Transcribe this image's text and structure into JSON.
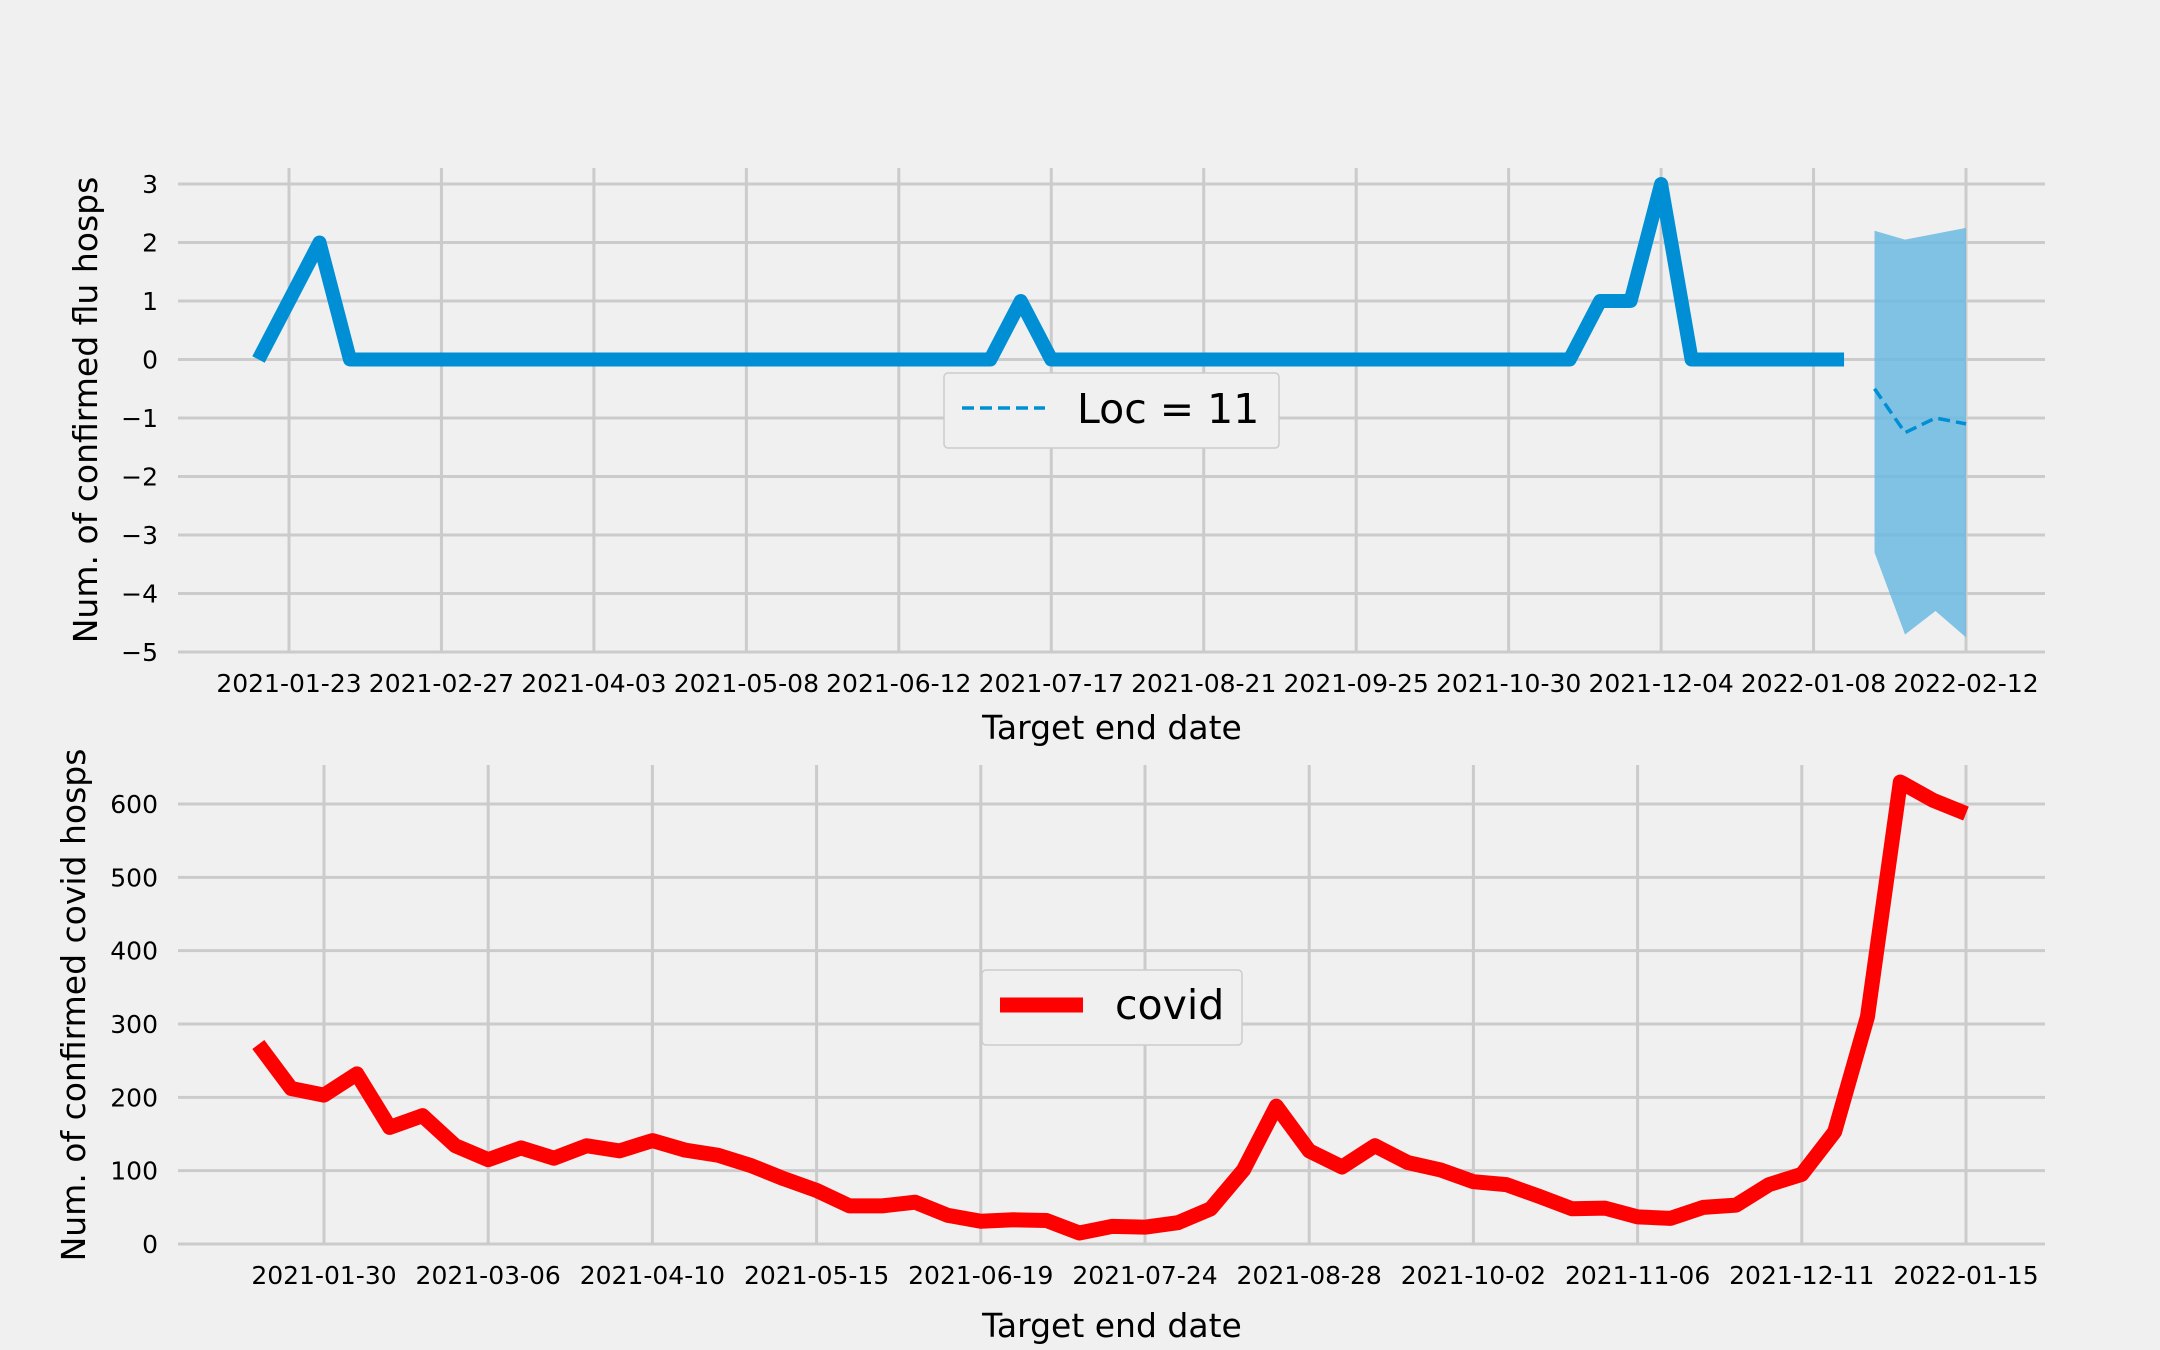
{
  "chart_data": [
    {
      "type": "line",
      "title": "",
      "xlabel": "Target end date",
      "ylabel": "Num. of confirmed flu hosps",
      "ylim": [
        -5,
        3
      ],
      "yticks": [
        3,
        2,
        1,
        0,
        -1,
        -2,
        -3,
        -4,
        -5
      ],
      "ytick_labels": [
        "3",
        "2",
        "1",
        "0",
        "−1",
        "−2",
        "−3",
        "−4",
        "−5"
      ],
      "xticks": [
        "2021-01-23",
        "2021-02-27",
        "2021-04-03",
        "2021-05-08",
        "2021-06-12",
        "2021-07-17",
        "2021-08-21",
        "2021-09-25",
        "2021-10-30",
        "2021-12-04",
        "2022-01-08",
        "2022-02-12"
      ],
      "grid": true,
      "legend": {
        "entries": [
          "Loc = 11"
        ],
        "position": "center"
      },
      "series": [
        {
          "name": "",
          "style": "solid",
          "color": "#008fd5",
          "x": [
            "2021-01-16",
            "2021-01-23",
            "2021-01-30",
            "2021-02-06",
            "2021-02-13",
            "2021-02-20",
            "2021-02-27",
            "2021-03-06",
            "2021-03-13",
            "2021-03-20",
            "2021-03-27",
            "2021-04-03",
            "2021-04-10",
            "2021-04-17",
            "2021-04-24",
            "2021-05-01",
            "2021-05-08",
            "2021-05-15",
            "2021-05-22",
            "2021-05-29",
            "2021-06-05",
            "2021-06-12",
            "2021-06-19",
            "2021-06-26",
            "2021-07-03",
            "2021-07-10",
            "2021-07-17",
            "2021-07-24",
            "2021-07-31",
            "2021-08-07",
            "2021-08-14",
            "2021-08-21",
            "2021-08-28",
            "2021-09-04",
            "2021-09-11",
            "2021-09-18",
            "2021-09-25",
            "2021-10-02",
            "2021-10-09",
            "2021-10-16",
            "2021-10-23",
            "2021-10-30",
            "2021-11-06",
            "2021-11-13",
            "2021-11-20",
            "2021-11-27",
            "2021-12-04",
            "2021-12-11",
            "2021-12-18",
            "2021-12-25",
            "2022-01-01",
            "2022-01-08",
            "2022-01-15"
          ],
          "values": [
            0,
            1,
            2,
            0,
            0,
            0,
            0,
            0,
            0,
            0,
            0,
            0,
            0,
            0,
            0,
            0,
            0,
            0,
            0,
            0,
            0,
            0,
            0,
            0,
            0,
            1,
            0,
            0,
            0,
            0,
            0,
            0,
            0,
            0,
            0,
            0,
            0,
            0,
            0,
            0,
            0,
            0,
            0,
            0,
            1,
            1,
            3,
            0,
            0,
            0,
            0,
            0,
            0
          ]
        },
        {
          "name": "Loc = 11",
          "style": "dashed",
          "color": "#008fd5",
          "x": [
            "2022-01-22",
            "2022-01-29",
            "2022-02-05",
            "2022-02-12"
          ],
          "values": [
            -0.5,
            -1.25,
            -1.0,
            -1.1
          ],
          "band_upper": [
            2.2,
            2.05,
            2.15,
            2.25
          ],
          "band_lower": [
            -3.3,
            -4.7,
            -4.3,
            -4.75
          ],
          "band_color": "#6cbae2"
        }
      ]
    },
    {
      "type": "line",
      "title": "",
      "xlabel": "Target end date",
      "ylabel": "Num. of confirmed covid hosps",
      "ylim": [
        0,
        650
      ],
      "yticks": [
        0,
        100,
        200,
        300,
        400,
        500,
        600
      ],
      "ytick_labels": [
        "0",
        "100",
        "200",
        "300",
        "400",
        "500",
        "600"
      ],
      "xticks": [
        "2021-01-30",
        "2021-03-06",
        "2021-04-10",
        "2021-05-15",
        "2021-06-19",
        "2021-07-24",
        "2021-08-28",
        "2021-10-02",
        "2021-11-06",
        "2021-12-11",
        "2022-01-15"
      ],
      "grid": true,
      "legend": {
        "entries": [
          "covid"
        ],
        "position": "center"
      },
      "series": [
        {
          "name": "covid",
          "style": "solid",
          "color": "#ff0000",
          "x": [
            "2021-01-16",
            "2021-01-23",
            "2021-01-30",
            "2021-02-06",
            "2021-02-13",
            "2021-02-20",
            "2021-02-27",
            "2021-03-06",
            "2021-03-13",
            "2021-03-20",
            "2021-03-27",
            "2021-04-03",
            "2021-04-10",
            "2021-04-17",
            "2021-04-24",
            "2021-05-01",
            "2021-05-08",
            "2021-05-15",
            "2021-05-22",
            "2021-05-29",
            "2021-06-05",
            "2021-06-12",
            "2021-06-19",
            "2021-06-26",
            "2021-07-03",
            "2021-07-10",
            "2021-07-17",
            "2021-07-24",
            "2021-07-31",
            "2021-08-07",
            "2021-08-14",
            "2021-08-21",
            "2021-08-28",
            "2021-09-04",
            "2021-09-11",
            "2021-09-18",
            "2021-09-25",
            "2021-10-02",
            "2021-10-09",
            "2021-10-16",
            "2021-10-23",
            "2021-10-30",
            "2021-11-06",
            "2021-11-13",
            "2021-11-20",
            "2021-11-27",
            "2021-12-04",
            "2021-12-11",
            "2021-12-18",
            "2021-12-25",
            "2022-01-01",
            "2022-01-08",
            "2022-01-15"
          ],
          "values": [
            272,
            212,
            203,
            232,
            159,
            175,
            134,
            115,
            131,
            117,
            134,
            127,
            141,
            128,
            121,
            107,
            89,
            73,
            52,
            52,
            57,
            39,
            31,
            33,
            32,
            15,
            24,
            23,
            29,
            48,
            101,
            188,
            127,
            105,
            134,
            111,
            101,
            85,
            81,
            65,
            48,
            49,
            37,
            35,
            50,
            53,
            81,
            95,
            153,
            310,
            630,
            605,
            587
          ]
        }
      ]
    }
  ]
}
